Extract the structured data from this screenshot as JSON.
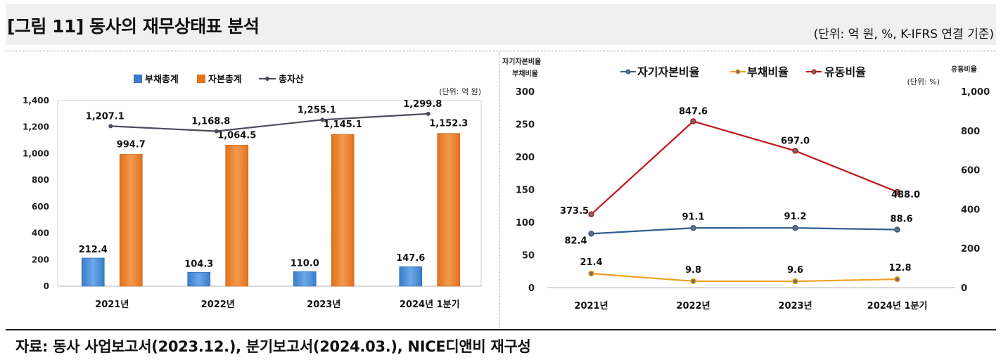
{
  "figure": {
    "title": "[그림 11] 동사의 재무상태표 분석",
    "unit_note": "(단위: 억 원, %, K-IFRS 연결 기준)",
    "source": "자료: 동사 사업보고서(2023.12.), 분기보고서(2024.03.), NICE디앤비 재구성"
  },
  "colors": {
    "liabilities_bar": "#3a7dc9",
    "equity_bar": "#e2711d",
    "total_assets_line": "#4b4b5e",
    "equity_ratio_line": "#2f5e8f",
    "debt_ratio_line": "#f0a020",
    "current_ratio_line": "#c0161b"
  },
  "chart_data": [
    {
      "type": "bar",
      "title": "",
      "unit_label": "(단위: 억 원)",
      "categories": [
        "2021년",
        "2022년",
        "2023년",
        "2024년 1분기"
      ],
      "series": [
        {
          "name": "부채총계",
          "kind": "bar",
          "values": [
            212.4,
            104.3,
            110.0,
            147.6
          ],
          "labels": [
            "212.4",
            "104.3",
            "110.0",
            "147.6"
          ]
        },
        {
          "name": "자본총계",
          "kind": "bar",
          "values": [
            994.7,
            1064.5,
            1145.1,
            1152.3
          ],
          "labels": [
            "994.7",
            "1,064.5",
            "1,145.1",
            "1,152.3"
          ]
        },
        {
          "name": "총자산",
          "kind": "line",
          "values": [
            1207.1,
            1168.8,
            1255.1,
            1299.8
          ],
          "labels": [
            "1,207.1",
            "1,168.8",
            "1,255.1",
            "1,299.8"
          ]
        }
      ],
      "ylim": [
        0,
        1400
      ],
      "yticks": [
        0,
        200,
        400,
        600,
        800,
        1000,
        1200,
        1400
      ],
      "ytick_labels": [
        "0",
        "200",
        "400",
        "600",
        "800",
        "1,000",
        "1,200",
        "1,400"
      ],
      "legend_position": "top-center"
    },
    {
      "type": "line",
      "title": "",
      "unit_label": "(단위: %)",
      "categories": [
        "2021년",
        "2022년",
        "2023년",
        "2024년 1분기"
      ],
      "left_axis_title_line1": "자기자본비율",
      "left_axis_title_line2": "부채비율",
      "right_axis_title": "유동비율",
      "series": [
        {
          "name": "자기자본비율",
          "axis": "left",
          "values": [
            82.4,
            91.1,
            91.2,
            88.6
          ],
          "labels": [
            "82.4",
            "91.1",
            "91.2",
            "88.6"
          ]
        },
        {
          "name": "부채비율",
          "axis": "left",
          "values": [
            21.4,
            9.8,
            9.6,
            12.8
          ],
          "labels": [
            "21.4",
            "9.8",
            "9.6",
            "12.8"
          ]
        },
        {
          "name": "유동비율",
          "axis": "right",
          "values": [
            373.5,
            847.6,
            697.0,
            488.0
          ],
          "labels": [
            "373.5",
            "847.6",
            "697.0",
            "488.0"
          ]
        }
      ],
      "ylim_left": [
        0,
        300
      ],
      "yticks_left": [
        0,
        50,
        100,
        150,
        200,
        250,
        300
      ],
      "ytick_labels_left": [
        "0",
        "50",
        "100",
        "150",
        "200",
        "250",
        "300"
      ],
      "ylim_right": [
        0,
        1000
      ],
      "yticks_right": [
        0,
        200,
        400,
        600,
        800,
        1000
      ],
      "ytick_labels_right": [
        "0",
        "200",
        "400",
        "600",
        "800",
        "1,000"
      ],
      "legend_position": "top-center"
    }
  ]
}
